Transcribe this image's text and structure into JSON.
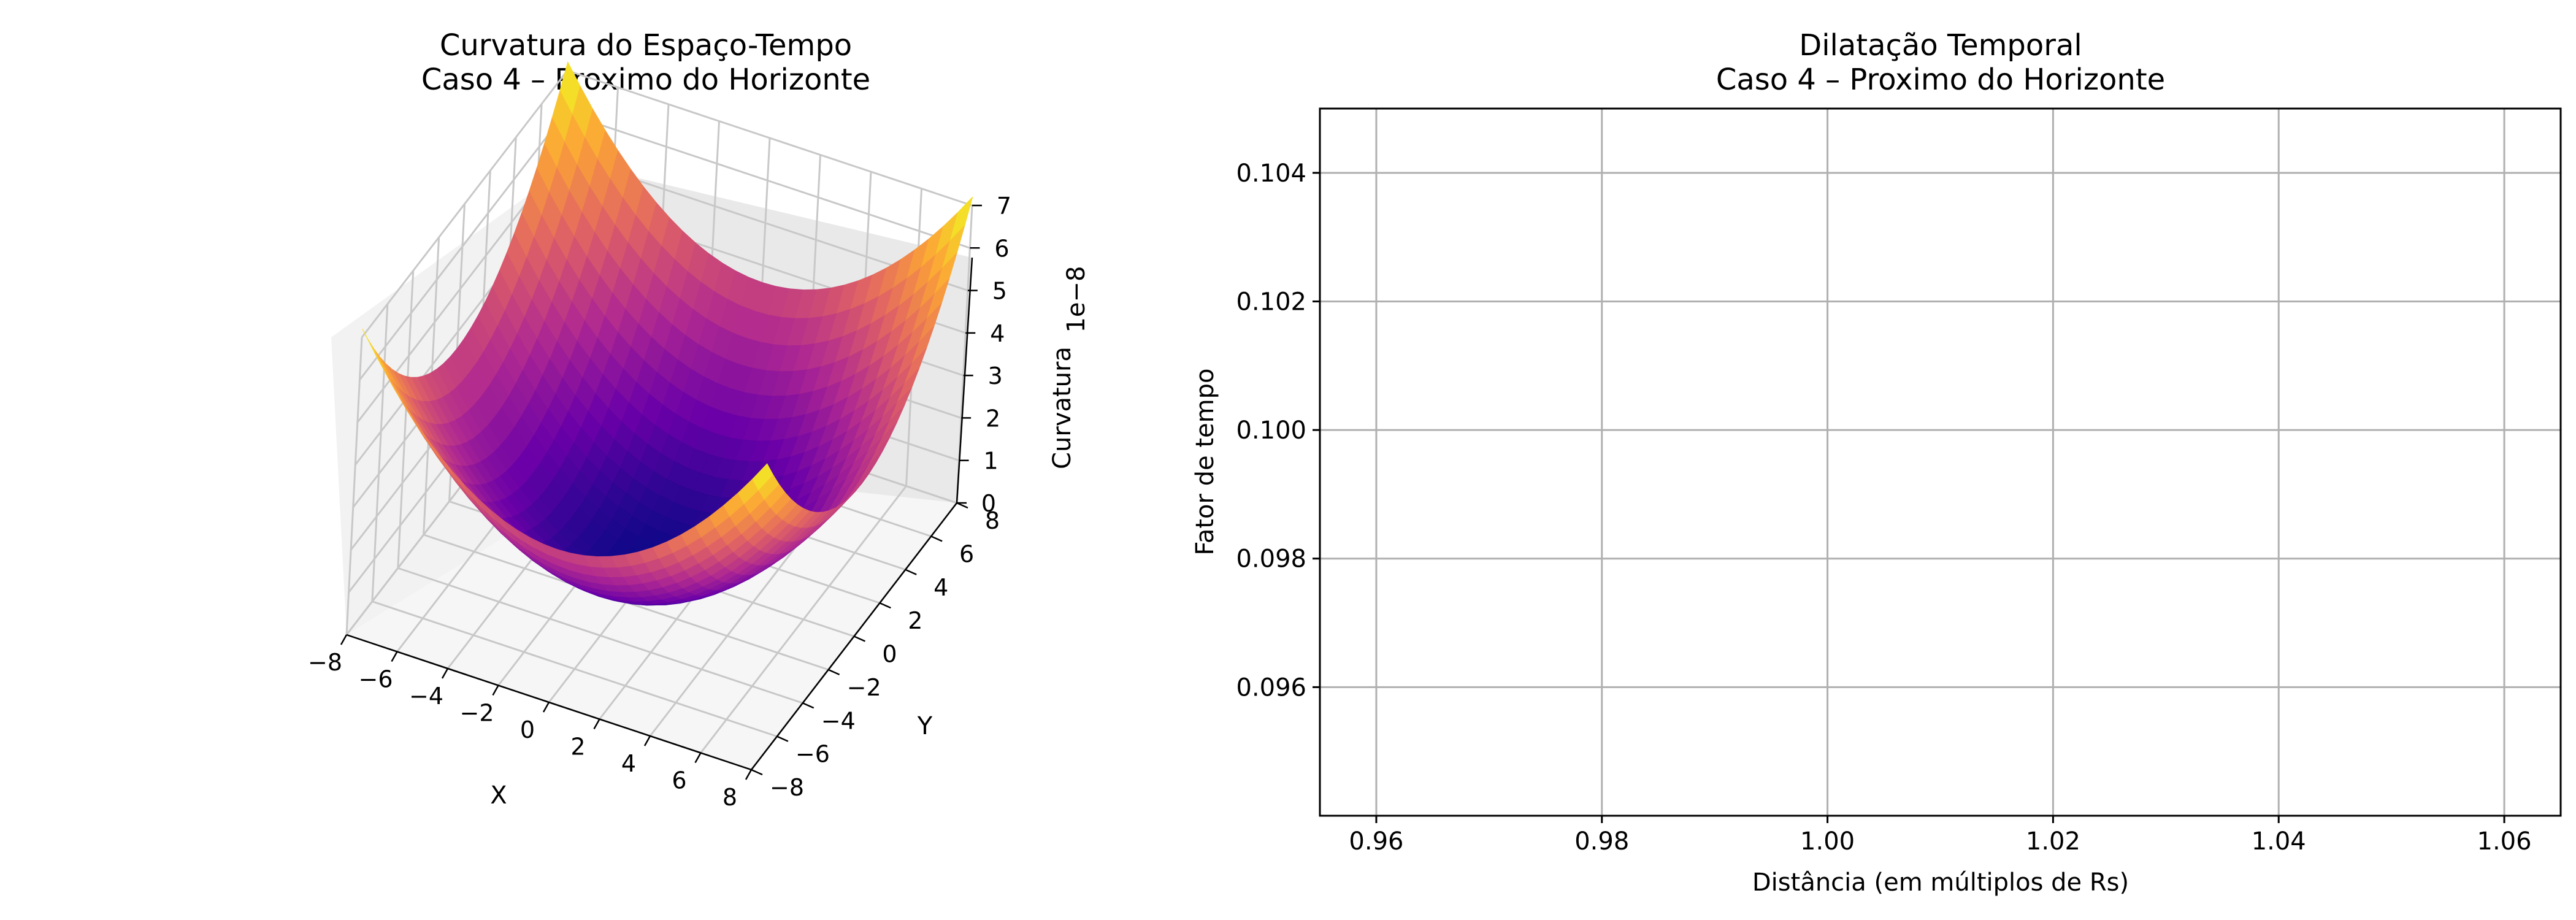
{
  "chart_data": [
    {
      "type": "surface",
      "title_line1": "Curvatura do Espaço-Tempo",
      "title_line2": "Caso 4 – Proximo do Horizonte",
      "xlabel": "X",
      "ylabel": "Y",
      "zlabel": "Curvatura",
      "z_offset_label": "1e−8",
      "xlim": [
        -8,
        8
      ],
      "ylim": [
        -8,
        8
      ],
      "zlim": [
        0,
        7
      ],
      "x_ticks": [
        "−8",
        "−6",
        "−4",
        "−2",
        "0",
        "2",
        "4",
        "6",
        "8"
      ],
      "y_ticks": [
        "−8",
        "−6",
        "−4",
        "−2",
        "0",
        "2",
        "4",
        "6",
        "8"
      ],
      "z_ticks": [
        "0",
        "1",
        "2",
        "3",
        "4",
        "5",
        "6",
        "7"
      ],
      "colormap": "plasma",
      "surface": {
        "form": "paraboloid",
        "z_at_origin": 0,
        "z_at_corner": 7.2
      }
    },
    {
      "type": "line",
      "title_line1": "Dilatação Temporal",
      "title_line2": "Caso 4 – Proximo do Horizonte",
      "xlabel": "Distância (em múltiplos de Rs)",
      "ylabel": "Fator de tempo",
      "xlim": [
        0.955,
        1.065
      ],
      "ylim": [
        0.094,
        0.105
      ],
      "x_ticks": [
        0.96,
        0.98,
        1.0,
        1.02,
        1.04,
        1.06
      ],
      "x_tick_labels": [
        "0.96",
        "0.98",
        "1.00",
        "1.02",
        "1.04",
        "1.06"
      ],
      "y_ticks": [
        0.096,
        0.098,
        0.1,
        0.102,
        0.104
      ],
      "y_tick_labels": [
        "0.096",
        "0.098",
        "0.100",
        "0.102",
        "0.104"
      ],
      "grid": true,
      "series": []
    }
  ]
}
